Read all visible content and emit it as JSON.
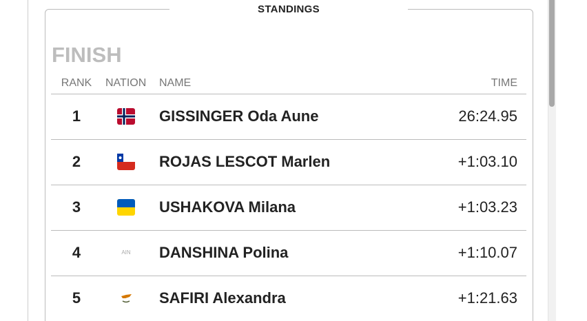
{
  "header": {
    "title": "STANDINGS"
  },
  "section": "FINISH",
  "table": {
    "columns": [
      "RANK",
      "NATION",
      "NAME",
      "TIME"
    ],
    "rows": [
      {
        "rank": 1,
        "name": "GISSINGER Oda Aune",
        "time": "26:24.95"
      },
      {
        "rank": 2,
        "name": "ROJAS LESCOT Marlen",
        "time": "+1:03.10"
      },
      {
        "rank": 3,
        "name": "USHAKOVA Milana",
        "time": "+1:03.23"
      },
      {
        "rank": 4,
        "nation": "AIN",
        "name": "DANSHINA Polina",
        "time": "+1:10.07"
      },
      {
        "rank": 5,
        "name": "SAFIRI Alexandra",
        "time": "+1:21.63"
      }
    ]
  }
}
